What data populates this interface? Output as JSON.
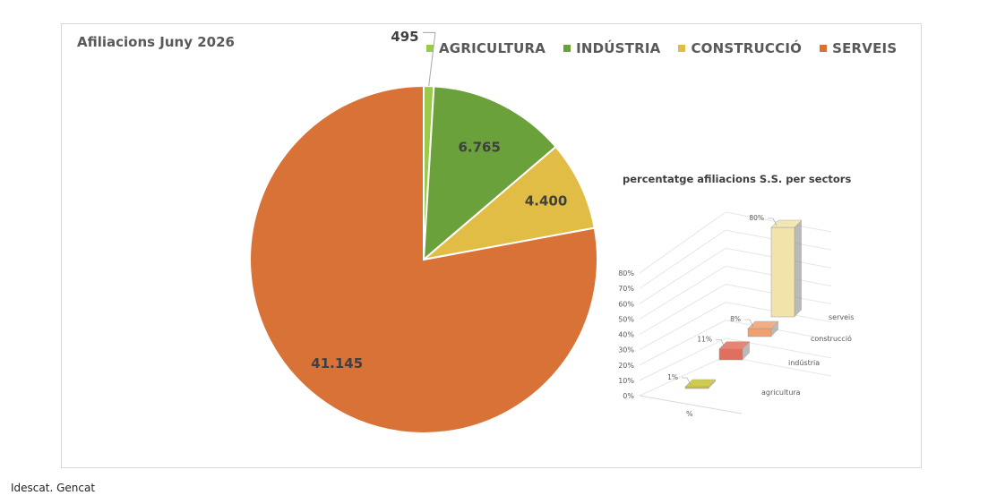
{
  "source": "Idescat. Gencat",
  "chart_data": [
    {
      "type": "pie",
      "title": "Afiliacions Juny 2026",
      "categories": [
        "AGRICULTURA",
        "INDÚSTRIA",
        "CONSTRUCCIÓ",
        "SERVEIS"
      ],
      "values": [
        495,
        6765,
        4400,
        41145
      ],
      "value_labels": [
        "495",
        "6.765",
        "4.400",
        "41.145"
      ],
      "colors": [
        "#9bc94a",
        "#6aa13b",
        "#e2bd45",
        "#d97236"
      ],
      "legend_position": "top-right"
    },
    {
      "type": "bar",
      "title": "percentatge afiliacions S.S. per sectors",
      "categories": [
        "agricultura",
        "indústria",
        "construcció",
        "serveis"
      ],
      "values": [
        1,
        11,
        8,
        80
      ],
      "value_labels": [
        "1%",
        "11%",
        "8%",
        "80%"
      ],
      "colors": [
        "#c8c42a",
        "#e0705e",
        "#f0a070",
        "#f2e3a8"
      ],
      "xlabel": "%",
      "ylim": [
        0,
        80
      ],
      "yticks": [
        "0%",
        "10%",
        "20%",
        "30%",
        "40%",
        "50%",
        "60%",
        "70%",
        "80%"
      ],
      "grid": true,
      "style": "3d-column"
    }
  ]
}
